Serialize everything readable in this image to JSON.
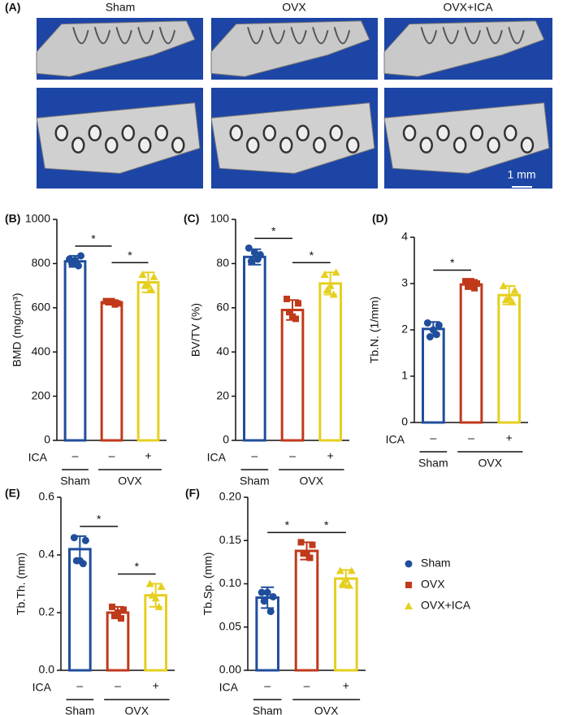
{
  "panel_a": {
    "label": "(A)",
    "columns": [
      "Sham",
      "OVX",
      "OVX+ICA"
    ],
    "scale_bar": "1 mm"
  },
  "legend": [
    {
      "name": "Sham",
      "color": "#1f4e9c",
      "marker": "circle"
    },
    {
      "name": "OVX",
      "color": "#c0391b",
      "marker": "square"
    },
    {
      "name": "OVX+ICA",
      "color": "#e6cf1e",
      "marker": "triangle"
    }
  ],
  "chart_data": [
    {
      "type": "bar",
      "panel": "(B)",
      "ylabel": "BMD (mg/cm³)",
      "row_label": "ICA",
      "categories": [
        "–",
        "–",
        "+"
      ],
      "groups": [
        "Sham",
        "OVX"
      ],
      "values": [
        810,
        625,
        715
      ],
      "errors": [
        25,
        10,
        45
      ],
      "points": [
        [
          820,
          835,
          800,
          790,
          815
        ],
        [
          630,
          620,
          625,
          615,
          630
        ],
        [
          750,
          740,
          700,
          680,
          705
        ]
      ],
      "colors": [
        "#1f4e9c",
        "#c0391b",
        "#e6cf1e"
      ],
      "markers": [
        "circle",
        "square",
        "triangle"
      ],
      "significance": [
        "*",
        "*"
      ],
      "ylim": [
        0,
        1000
      ],
      "yticks": [
        0,
        200,
        400,
        600,
        800,
        1000
      ]
    },
    {
      "type": "bar",
      "panel": "(C)",
      "ylabel": "BV/TV (%)",
      "row_label": "ICA",
      "categories": [
        "–",
        "–",
        "+"
      ],
      "groups": [
        "Sham",
        "OVX"
      ],
      "values": [
        83,
        59,
        71
      ],
      "errors": [
        3.5,
        4.5,
        5
      ],
      "points": [
        [
          87,
          84,
          81,
          82,
          85
        ],
        [
          64,
          62,
          58,
          55,
          56
        ],
        [
          75,
          76,
          68,
          66,
          70
        ]
      ],
      "colors": [
        "#1f4e9c",
        "#c0391b",
        "#e6cf1e"
      ],
      "markers": [
        "circle",
        "square",
        "triangle"
      ],
      "significance": [
        "*",
        "*"
      ],
      "ylim": [
        0,
        100
      ],
      "yticks": [
        0,
        20,
        40,
        60,
        80,
        100
      ]
    },
    {
      "type": "bar",
      "panel": "(D)",
      "ylabel": "Tb.N. (1/mm)",
      "row_label": "ICA",
      "categories": [
        "–",
        "–",
        "+"
      ],
      "groups": [
        "Sham",
        "OVX"
      ],
      "values": [
        2.02,
        2.98,
        2.75
      ],
      "errors": [
        0.15,
        0.1,
        0.2
      ],
      "points": [
        [
          2.15,
          2.1,
          1.85,
          1.9,
          2.0
        ],
        [
          3.05,
          3.0,
          2.95,
          2.9,
          3.05
        ],
        [
          2.95,
          2.85,
          2.65,
          2.6,
          2.7
        ]
      ],
      "colors": [
        "#1f4e9c",
        "#c0391b",
        "#e6cf1e"
      ],
      "markers": [
        "circle",
        "square",
        "triangle"
      ],
      "significance": [
        "*"
      ],
      "ylim": [
        0,
        4
      ],
      "yticks": [
        0,
        1,
        2,
        3,
        4
      ]
    },
    {
      "type": "bar",
      "panel": "(E)",
      "ylabel": "Tb.Th. (mm)",
      "row_label": "ICA",
      "categories": [
        "–",
        "–",
        "+"
      ],
      "groups": [
        "Sham",
        "OVX"
      ],
      "values": [
        0.42,
        0.2,
        0.26
      ],
      "errors": [
        0.045,
        0.02,
        0.04
      ],
      "points": [
        [
          0.46,
          0.45,
          0.38,
          0.37,
          0.38
        ],
        [
          0.22,
          0.21,
          0.19,
          0.18,
          0.2
        ],
        [
          0.3,
          0.29,
          0.26,
          0.22,
          0.25
        ]
      ],
      "colors": [
        "#1f4e9c",
        "#c0391b",
        "#e6cf1e"
      ],
      "markers": [
        "circle",
        "square",
        "triangle"
      ],
      "significance": [
        "*",
        "*"
      ],
      "ylim": [
        0,
        0.6
      ],
      "yticks": [
        {
          "value": 0,
          "label": "0.0"
        },
        0.2,
        0.4,
        0.6
      ]
    },
    {
      "type": "bar",
      "panel": "(F)",
      "ylabel": "Tb.Sp. (mm)",
      "row_label": "ICA",
      "categories": [
        "–",
        "–",
        "+"
      ],
      "groups": [
        "Sham",
        "OVX"
      ],
      "values": [
        0.084,
        0.138,
        0.106
      ],
      "errors": [
        0.012,
        0.01,
        0.01
      ],
      "points": [
        [
          0.09,
          0.085,
          0.08,
          0.068,
          0.09
        ],
        [
          0.148,
          0.145,
          0.135,
          0.13,
          0.135
        ],
        [
          0.115,
          0.115,
          0.1,
          0.098,
          0.105
        ]
      ],
      "colors": [
        "#1f4e9c",
        "#c0391b",
        "#e6cf1e"
      ],
      "markers": [
        "circle",
        "square",
        "triangle"
      ],
      "significance": [
        "*",
        "*"
      ],
      "ylim": [
        0,
        0.2
      ],
      "yticks": [
        {
          "value": 0,
          "label": "0.00"
        },
        {
          "value": 0.05,
          "label": "0.05"
        },
        {
          "value": 0.1,
          "label": "0.10"
        },
        {
          "value": 0.15,
          "label": "0.15"
        },
        {
          "value": 0.2,
          "label": "0.20"
        }
      ]
    }
  ]
}
